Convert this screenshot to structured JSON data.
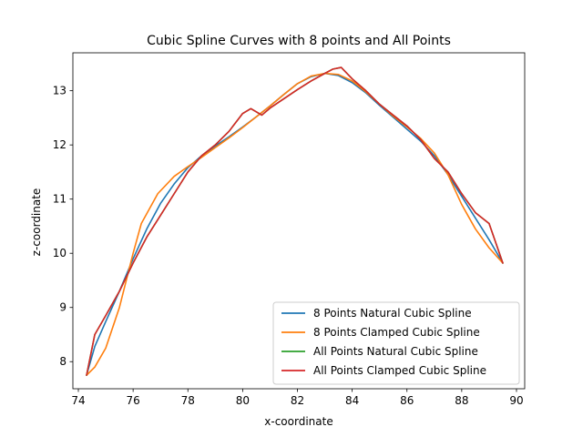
{
  "chart_data": {
    "type": "line",
    "title": "Cubic Spline Curves with 8 points and All Points",
    "xlabel": "x-coordinate",
    "ylabel": "z-coordinate",
    "xlim": [
      73.8,
      90.3
    ],
    "ylim": [
      7.5,
      13.7
    ],
    "xticks": [
      74,
      76,
      78,
      80,
      82,
      84,
      86,
      88,
      90
    ],
    "yticks": [
      8,
      9,
      10,
      11,
      12,
      13
    ],
    "grid": false,
    "legend_position": "lower-right",
    "series": [
      {
        "name": "8 Points Natural Cubic Spline",
        "color": "#1f77b4",
        "x": [
          74.3,
          74.6,
          75.0,
          75.5,
          76.0,
          76.5,
          77.0,
          77.5,
          78.0,
          78.5,
          79.0,
          79.5,
          80.0,
          80.5,
          81.0,
          81.5,
          82.0,
          82.5,
          83.0,
          83.5,
          84.0,
          84.5,
          85.0,
          85.5,
          86.0,
          86.5,
          87.0,
          87.5,
          88.0,
          88.5,
          89.0,
          89.5
        ],
        "y": [
          7.75,
          8.28,
          8.74,
          9.3,
          9.9,
          10.45,
          10.92,
          11.28,
          11.58,
          11.8,
          11.98,
          12.15,
          12.33,
          12.52,
          12.72,
          12.93,
          13.13,
          13.26,
          13.32,
          13.28,
          13.15,
          12.96,
          12.73,
          12.51,
          12.29,
          12.07,
          11.8,
          11.45,
          11.05,
          10.65,
          10.25,
          9.82
        ]
      },
      {
        "name": "8 Points Clamped Cubic Spline",
        "color": "#ff7f0e",
        "x": [
          74.3,
          74.6,
          75.0,
          75.5,
          76.0,
          76.3,
          76.9,
          77.5,
          78.0,
          78.5,
          79.0,
          79.5,
          80.0,
          80.5,
          81.0,
          81.5,
          82.0,
          82.5,
          83.0,
          83.5,
          84.0,
          84.5,
          85.0,
          85.5,
          86.0,
          86.5,
          87.0,
          87.5,
          88.0,
          88.5,
          89.0,
          89.5
        ],
        "y": [
          7.75,
          7.9,
          8.25,
          9.0,
          10.0,
          10.55,
          11.1,
          11.42,
          11.6,
          11.77,
          11.95,
          12.13,
          12.32,
          12.52,
          12.72,
          12.93,
          13.13,
          13.27,
          13.32,
          13.3,
          13.18,
          12.98,
          12.75,
          12.53,
          12.33,
          12.12,
          11.85,
          11.45,
          10.9,
          10.45,
          10.1,
          9.82
        ]
      },
      {
        "name": "All Points Natural Cubic Spline",
        "color": "#2ca02c",
        "x": [
          74.3,
          74.6,
          75.0,
          75.5,
          76.0,
          76.5,
          77.0,
          77.5,
          78.0,
          78.5,
          79.0,
          79.5,
          80.0,
          80.3,
          80.7,
          81.0,
          81.5,
          82.0,
          82.5,
          83.0,
          83.3,
          83.6,
          84.0,
          84.5,
          85.0,
          85.5,
          86.0,
          86.5,
          87.0,
          87.5,
          88.0,
          88.5,
          89.0,
          89.5
        ],
        "y": [
          7.75,
          8.5,
          8.85,
          9.3,
          9.82,
          10.3,
          10.7,
          11.1,
          11.5,
          11.8,
          12.0,
          12.25,
          12.58,
          12.67,
          12.55,
          12.68,
          12.85,
          13.02,
          13.18,
          13.32,
          13.4,
          13.43,
          13.22,
          13.0,
          12.75,
          12.55,
          12.35,
          12.1,
          11.75,
          11.5,
          11.1,
          10.75,
          10.55,
          9.82
        ]
      },
      {
        "name": "All Points Clamped Cubic Spline",
        "color": "#d62728",
        "x": [
          74.3,
          74.6,
          75.0,
          75.5,
          76.0,
          76.5,
          77.0,
          77.5,
          78.0,
          78.5,
          79.0,
          79.5,
          80.0,
          80.3,
          80.7,
          81.0,
          81.5,
          82.0,
          82.5,
          83.0,
          83.3,
          83.6,
          84.0,
          84.5,
          85.0,
          85.5,
          86.0,
          86.5,
          87.0,
          87.5,
          88.0,
          88.5,
          89.0,
          89.5
        ],
        "y": [
          7.75,
          8.5,
          8.85,
          9.3,
          9.82,
          10.3,
          10.7,
          11.1,
          11.5,
          11.8,
          12.0,
          12.25,
          12.58,
          12.67,
          12.55,
          12.68,
          12.85,
          13.02,
          13.18,
          13.32,
          13.4,
          13.43,
          13.22,
          13.0,
          12.75,
          12.55,
          12.35,
          12.1,
          11.75,
          11.5,
          11.1,
          10.75,
          10.55,
          9.82
        ]
      }
    ]
  }
}
